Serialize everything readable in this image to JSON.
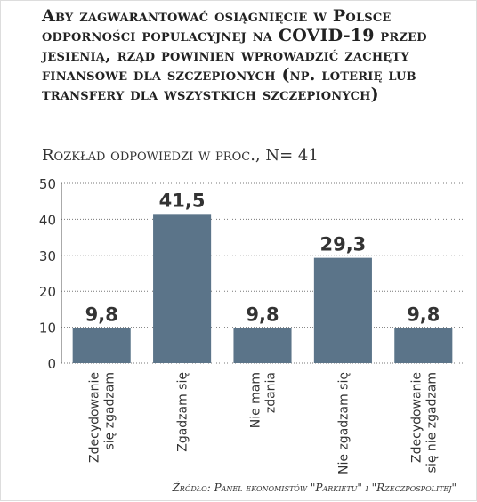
{
  "chart_data": {
    "type": "bar",
    "title": "Aby zagwarantować osiągnięcie w Polsce odporności populacyjnej na COVID-19 przed jesienią, rząd powinien wprowadzić zachęty finansowe dla szczepionych (np. loterię lub transfery dla wszystkich szczepionych)",
    "subtitle": "Rozkład odpowiedzi w proc., N= 41",
    "source": "Źródło: Panel ekonomistów \"Parkietu\" i \"Rzeczpospolitej\"",
    "categories": [
      [
        "Zdecydowanie",
        "się zgadzam"
      ],
      [
        "Zgadzam się"
      ],
      [
        "Nie mam",
        "zdania"
      ],
      [
        "Nie zgadzam się"
      ],
      [
        "Zdecydowanie",
        "się nie zgadzam"
      ]
    ],
    "values": [
      9.8,
      41.5,
      9.8,
      29.3,
      9.8
    ],
    "value_labels": [
      "9,8",
      "41,5",
      "9,8",
      "29,3",
      "9,8"
    ],
    "color": "#5b7489",
    "ylim": [
      0,
      50
    ],
    "yticks": [
      0,
      10,
      20,
      30,
      40,
      50
    ],
    "grid": true
  }
}
